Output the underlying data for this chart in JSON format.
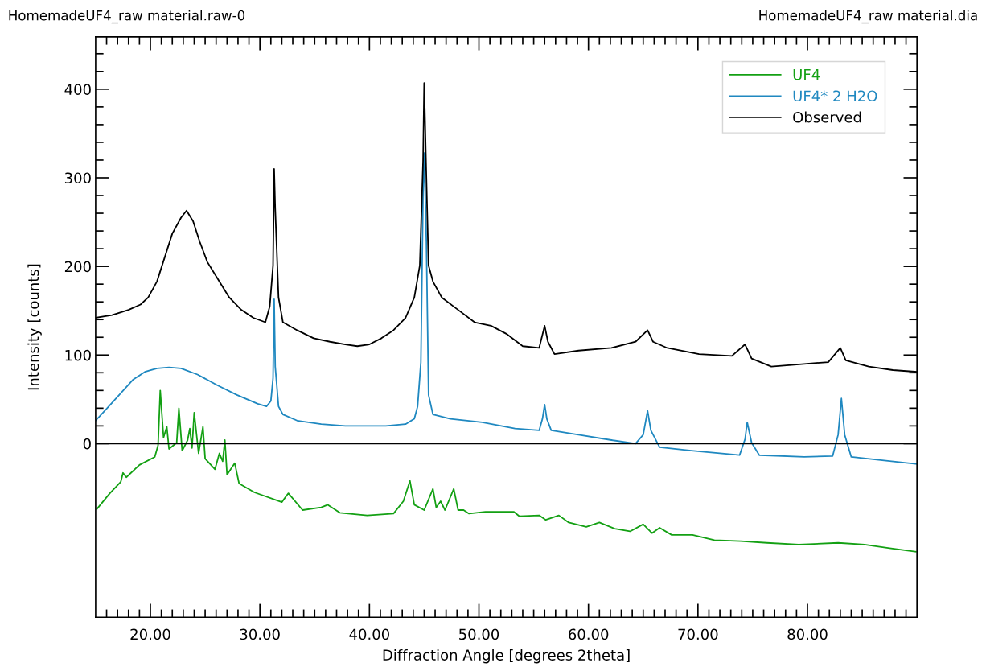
{
  "chart_data": {
    "type": "line",
    "xlabel": "Diffraction Angle [degrees 2theta]",
    "ylabel": "Intensity [counts]",
    "annotations": [
      "HomemadeUF4_raw material.raw-0",
      "HomemadeUF4_raw material.dia"
    ],
    "xlim": [
      15,
      90
    ],
    "ylim": [
      -196,
      459
    ],
    "xticks": [
      {
        "value": 16,
        "label": null
      },
      {
        "value": 17,
        "label": null
      },
      {
        "value": 18,
        "label": null
      },
      {
        "value": 19,
        "label": null
      },
      {
        "value": 20,
        "label": "20.00"
      },
      {
        "value": 21,
        "label": null
      },
      {
        "value": 22,
        "label": null
      },
      {
        "value": 23,
        "label": null
      },
      {
        "value": 24,
        "label": null
      },
      {
        "value": 25,
        "label": null
      },
      {
        "value": 26,
        "label": null
      },
      {
        "value": 27,
        "label": null
      },
      {
        "value": 28,
        "label": null
      },
      {
        "value": 29,
        "label": null
      },
      {
        "value": 30,
        "label": "30.00"
      },
      {
        "value": 31,
        "label": null
      },
      {
        "value": 32,
        "label": null
      },
      {
        "value": 33,
        "label": null
      },
      {
        "value": 34,
        "label": null
      },
      {
        "value": 35,
        "label": null
      },
      {
        "value": 36,
        "label": null
      },
      {
        "value": 37,
        "label": null
      },
      {
        "value": 38,
        "label": null
      },
      {
        "value": 39,
        "label": null
      },
      {
        "value": 40,
        "label": "40.00"
      },
      {
        "value": 41,
        "label": null
      },
      {
        "value": 42,
        "label": null
      },
      {
        "value": 43,
        "label": null
      },
      {
        "value": 44,
        "label": null
      },
      {
        "value": 45,
        "label": null
      },
      {
        "value": 46,
        "label": null
      },
      {
        "value": 47,
        "label": null
      },
      {
        "value": 48,
        "label": null
      },
      {
        "value": 49,
        "label": null
      },
      {
        "value": 50,
        "label": "50.00"
      },
      {
        "value": 51,
        "label": null
      },
      {
        "value": 52,
        "label": null
      },
      {
        "value": 53,
        "label": null
      },
      {
        "value": 54,
        "label": null
      },
      {
        "value": 55,
        "label": null
      },
      {
        "value": 56,
        "label": null
      },
      {
        "value": 57,
        "label": null
      },
      {
        "value": 58,
        "label": null
      },
      {
        "value": 59,
        "label": null
      },
      {
        "value": 60,
        "label": "60.00"
      },
      {
        "value": 61,
        "label": null
      },
      {
        "value": 62,
        "label": null
      },
      {
        "value": 63,
        "label": null
      },
      {
        "value": 64,
        "label": null
      },
      {
        "value": 65,
        "label": null
      },
      {
        "value": 66,
        "label": null
      },
      {
        "value": 67,
        "label": null
      },
      {
        "value": 68,
        "label": null
      },
      {
        "value": 69,
        "label": null
      },
      {
        "value": 70,
        "label": "70.00"
      },
      {
        "value": 71,
        "label": null
      },
      {
        "value": 72,
        "label": null
      },
      {
        "value": 73,
        "label": null
      },
      {
        "value": 74,
        "label": null
      },
      {
        "value": 75,
        "label": null
      },
      {
        "value": 76,
        "label": null
      },
      {
        "value": 77,
        "label": null
      },
      {
        "value": 78,
        "label": null
      },
      {
        "value": 79,
        "label": null
      },
      {
        "value": 80,
        "label": "80.00"
      },
      {
        "value": 81,
        "label": null
      },
      {
        "value": 82,
        "label": null
      },
      {
        "value": 83,
        "label": null
      },
      {
        "value": 84,
        "label": null
      },
      {
        "value": 85,
        "label": null
      },
      {
        "value": 86,
        "label": null
      },
      {
        "value": 87,
        "label": null
      },
      {
        "value": 88,
        "label": null
      },
      {
        "value": 89,
        "label": null
      }
    ],
    "yticks": [
      0,
      {
        "value": 20,
        "label": null
      },
      {
        "value": 40,
        "label": null
      },
      {
        "value": 60,
        "label": null
      },
      {
        "value": 80,
        "label": null
      },
      100,
      {
        "value": 120,
        "label": null
      },
      {
        "value": 140,
        "label": null
      },
      {
        "value": 160,
        "label": null
      },
      {
        "value": 180,
        "label": null
      },
      200,
      {
        "value": 220,
        "label": null
      },
      {
        "value": 240,
        "label": null
      },
      {
        "value": 260,
        "label": null
      },
      {
        "value": 280,
        "label": null
      },
      300,
      {
        "value": 320,
        "label": null
      },
      {
        "value": 340,
        "label": null
      },
      {
        "value": 360,
        "label": null
      },
      {
        "value": 380,
        "label": null
      },
      400,
      {
        "value": 420,
        "label": null
      },
      {
        "value": 440,
        "label": null
      }
    ],
    "ref_lines": [
      {
        "axis": "y",
        "value": 0,
        "color": "#000000"
      }
    ],
    "grid": false,
    "legend": "top right",
    "marker": "none",
    "line_style": "solid",
    "series": [
      {
        "name": "UF4",
        "color": "#13a013",
        "x": [
          15.1,
          16.3,
          17.3,
          17.5,
          17.8,
          19.0,
          20.4,
          20.7,
          20.9,
          21.2,
          21.5,
          21.7,
          22.4,
          22.6,
          22.9,
          23.4,
          23.6,
          23.8,
          24.0,
          24.4,
          24.8,
          25.0,
          25.9,
          26.3,
          26.6,
          26.8,
          27.0,
          27.7,
          28.1,
          29.5,
          32.0,
          32.6,
          33.9,
          35.6,
          36.2,
          37.3,
          39.8,
          42.2,
          43.1,
          43.7,
          44.1,
          45.0,
          45.8,
          46.1,
          46.5,
          46.9,
          47.7,
          48.1,
          48.6,
          49.1,
          50.6,
          53.2,
          53.7,
          55.5,
          56.1,
          57.3,
          58.2,
          59.8,
          61.0,
          62.4,
          63.8,
          65.0,
          65.8,
          66.5,
          67.6,
          69.5,
          71.5,
          73.9,
          76.3,
          79.2,
          82.8,
          85.2,
          87.5,
          89.9
        ],
        "values": [
          -74,
          -56,
          -43,
          -33,
          -38,
          -24,
          -15,
          -2,
          60,
          7,
          19,
          -6,
          1,
          40,
          -8,
          4,
          17,
          -5,
          35,
          -11,
          19,
          -17,
          -29,
          -11,
          -20,
          4,
          -35,
          -22,
          -45,
          -55,
          -66,
          -56,
          -75,
          -72,
          -69,
          -78,
          -81,
          -79,
          -65,
          -42,
          -69,
          -75,
          -51,
          -72,
          -65,
          -75,
          -51,
          -75,
          -75,
          -79,
          -77,
          -77,
          -82,
          -81,
          -86,
          -81,
          -89,
          -94,
          -89,
          -96,
          -99,
          -91,
          -101,
          -95,
          -103,
          -103,
          -109,
          -110,
          -112,
          -114,
          -112,
          -114,
          -118,
          -122
        ]
      },
      {
        "name": "UF4* 2 H2O",
        "color": "#1f88c0",
        "x": [
          15.0,
          16.2,
          17.3,
          18.4,
          19.5,
          20.6,
          21.7,
          22.8,
          24.3,
          26.1,
          27.9,
          29.8,
          30.6,
          31.0,
          31.2,
          31.3,
          31.4,
          31.7,
          32.1,
          33.4,
          35.6,
          37.8,
          41.5,
          43.3,
          44.1,
          44.4,
          44.7,
          44.9,
          45.0,
          45.2,
          45.4,
          45.8,
          47.4,
          50.3,
          53.3,
          55.5,
          55.8,
          56.0,
          56.2,
          56.6,
          59.1,
          62.1,
          64.3,
          65.0,
          65.4,
          65.7,
          66.5,
          69.4,
          73.8,
          74.3,
          74.5,
          74.9,
          75.6,
          79.7,
          82.3,
          82.8,
          83.1,
          83.4,
          84.0,
          87.0,
          90.0
        ],
        "values": [
          26,
          42,
          57,
          72,
          81,
          85,
          86,
          85,
          78,
          66,
          55,
          45,
          42,
          48,
          74,
          163,
          87,
          42,
          33,
          26,
          22,
          20,
          20,
          22,
          28,
          42,
          92,
          283,
          328,
          228,
          55,
          33,
          28,
          24,
          17,
          15,
          28,
          44,
          28,
          15,
          10,
          4,
          0,
          10,
          37,
          15,
          -4,
          -8,
          -13,
          5,
          24,
          1,
          -13,
          -15,
          -14,
          10,
          51,
          10,
          -15,
          -19,
          -23
        ]
      },
      {
        "name": "Observed",
        "color": "#000000",
        "x": [
          15.0,
          16.5,
          18.0,
          19.1,
          19.8,
          20.6,
          21.3,
          22.0,
          22.8,
          23.3,
          23.9,
          24.5,
          25.2,
          26.1,
          27.2,
          28.3,
          29.4,
          30.5,
          30.9,
          31.2,
          31.3,
          31.4,
          31.7,
          32.1,
          33.4,
          34.9,
          36.4,
          37.8,
          38.9,
          40.0,
          41.1,
          42.2,
          43.3,
          44.1,
          44.6,
          44.9,
          45.0,
          45.2,
          45.4,
          45.8,
          46.6,
          48.1,
          49.6,
          51.1,
          52.5,
          54.0,
          55.5,
          56.0,
          56.3,
          56.9,
          59.1,
          62.1,
          64.3,
          65.4,
          65.9,
          67.2,
          70.1,
          73.1,
          74.3,
          74.9,
          76.7,
          79.7,
          81.9,
          83.0,
          83.5,
          85.6,
          87.8,
          90.0
        ],
        "values": [
          142,
          145,
          151,
          157,
          165,
          183,
          210,
          237,
          255,
          263,
          251,
          228,
          205,
          187,
          165,
          151,
          142,
          137,
          155,
          201,
          310,
          265,
          165,
          137,
          128,
          119,
          115,
          112,
          110,
          112,
          119,
          128,
          142,
          165,
          201,
          319,
          407,
          301,
          201,
          183,
          165,
          151,
          137,
          133,
          124,
          110,
          108,
          133,
          115,
          101,
          105,
          108,
          115,
          128,
          115,
          108,
          101,
          99,
          112,
          96,
          87,
          90,
          92,
          108,
          94,
          87,
          83,
          81
        ]
      }
    ]
  }
}
